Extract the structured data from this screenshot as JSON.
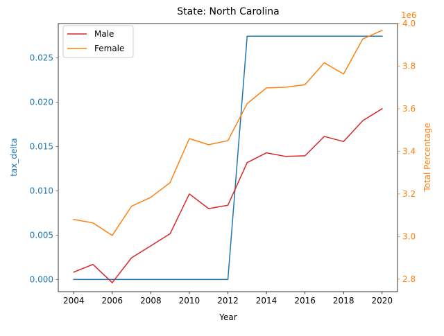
{
  "chart_data": {
    "type": "line",
    "title": "State: North Carolina",
    "xlabel": "Year",
    "ylabel_left": "tax_delta",
    "ylabel_right": "Total Percentage",
    "right_offset_label": "1e6",
    "x": [
      2004,
      2005,
      2006,
      2007,
      2008,
      2009,
      2010,
      2011,
      2012,
      2013,
      2014,
      2015,
      2016,
      2017,
      2018,
      2019,
      2020
    ],
    "xticks": [
      2004,
      2006,
      2008,
      2010,
      2012,
      2014,
      2016,
      2018,
      2020
    ],
    "xlim": [
      2003.2,
      2020.8
    ],
    "left_axis": {
      "ylim": [
        -0.00138,
        0.02888
      ],
      "ticks": [
        "0.000",
        "0.005",
        "0.010",
        "0.015",
        "0.020",
        "0.025"
      ],
      "tick_values": [
        0,
        0.005,
        0.01,
        0.015,
        0.02,
        0.025
      ],
      "color": "#1f77b4"
    },
    "right_axis": {
      "ylim": [
        2.741,
        4.0
      ],
      "ticks": [
        "2.8",
        "3.0",
        "3.2",
        "3.4",
        "3.6",
        "3.8",
        "4.0"
      ],
      "tick_values": [
        2.8,
        3.0,
        3.2,
        3.4,
        3.6,
        3.8,
        4.0
      ],
      "color": "#ff7f0e"
    },
    "series": [
      {
        "name": "",
        "axis": "left",
        "color": "#1f77b4",
        "values": [
          0,
          0,
          0,
          0,
          0,
          0,
          0,
          0,
          0,
          0.02745,
          0.02745,
          0.02745,
          0.02745,
          0.02745,
          0.02745,
          0.02745,
          0.02745
        ]
      },
      {
        "name": "Male",
        "axis": "right",
        "color": "#d62728",
        "values": [
          2.833,
          2.869,
          2.783,
          2.9,
          2.956,
          3.013,
          3.2,
          3.131,
          3.147,
          3.347,
          3.393,
          3.376,
          3.379,
          3.47,
          3.446,
          3.544,
          3.6
        ]
      },
      {
        "name": "Female",
        "axis": "right",
        "color": "#ff7f0e",
        "values": [
          3.08,
          3.064,
          3.005,
          3.142,
          3.184,
          3.253,
          3.46,
          3.431,
          3.45,
          3.624,
          3.698,
          3.701,
          3.713,
          3.816,
          3.763,
          3.928,
          3.968
        ]
      }
    ],
    "legend": {
      "placement": "upper-left",
      "entries": [
        "Male",
        "Female"
      ]
    },
    "grid": false
  }
}
